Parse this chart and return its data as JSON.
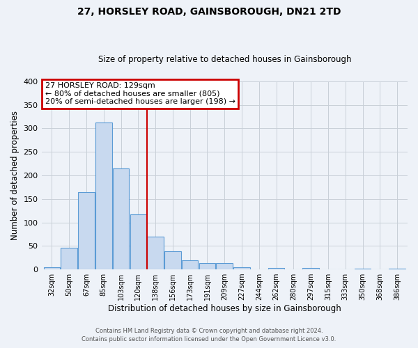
{
  "title": "27, HORSLEY ROAD, GAINSBOROUGH, DN21 2TD",
  "subtitle": "Size of property relative to detached houses in Gainsborough",
  "xlabel": "Distribution of detached houses by size in Gainsborough",
  "ylabel": "Number of detached properties",
  "bin_labels": [
    "32sqm",
    "50sqm",
    "67sqm",
    "85sqm",
    "103sqm",
    "120sqm",
    "138sqm",
    "156sqm",
    "173sqm",
    "191sqm",
    "209sqm",
    "227sqm",
    "244sqm",
    "262sqm",
    "280sqm",
    "297sqm",
    "315sqm",
    "333sqm",
    "350sqm",
    "368sqm",
    "386sqm"
  ],
  "bar_heights": [
    5,
    46,
    165,
    312,
    215,
    117,
    69,
    38,
    20,
    13,
    13,
    5,
    0,
    3,
    0,
    3,
    0,
    0,
    2,
    0,
    2
  ],
  "bar_color": "#c8d9ef",
  "bar_edge_color": "#5b9bd5",
  "vline_color": "#cc0000",
  "annotation_title": "27 HORSLEY ROAD: 129sqm",
  "annotation_line1": "← 80% of detached houses are smaller (805)",
  "annotation_line2": "20% of semi-detached houses are larger (198) →",
  "annotation_box_edgecolor": "#cc0000",
  "ylim": [
    0,
    400
  ],
  "yticks": [
    0,
    50,
    100,
    150,
    200,
    250,
    300,
    350,
    400
  ],
  "footer1": "Contains HM Land Registry data © Crown copyright and database right 2024.",
  "footer2": "Contains public sector information licensed under the Open Government Licence v3.0.",
  "background_color": "#eef2f8",
  "plot_background": "#eef2f8",
  "grid_color": "#c8cfd8"
}
